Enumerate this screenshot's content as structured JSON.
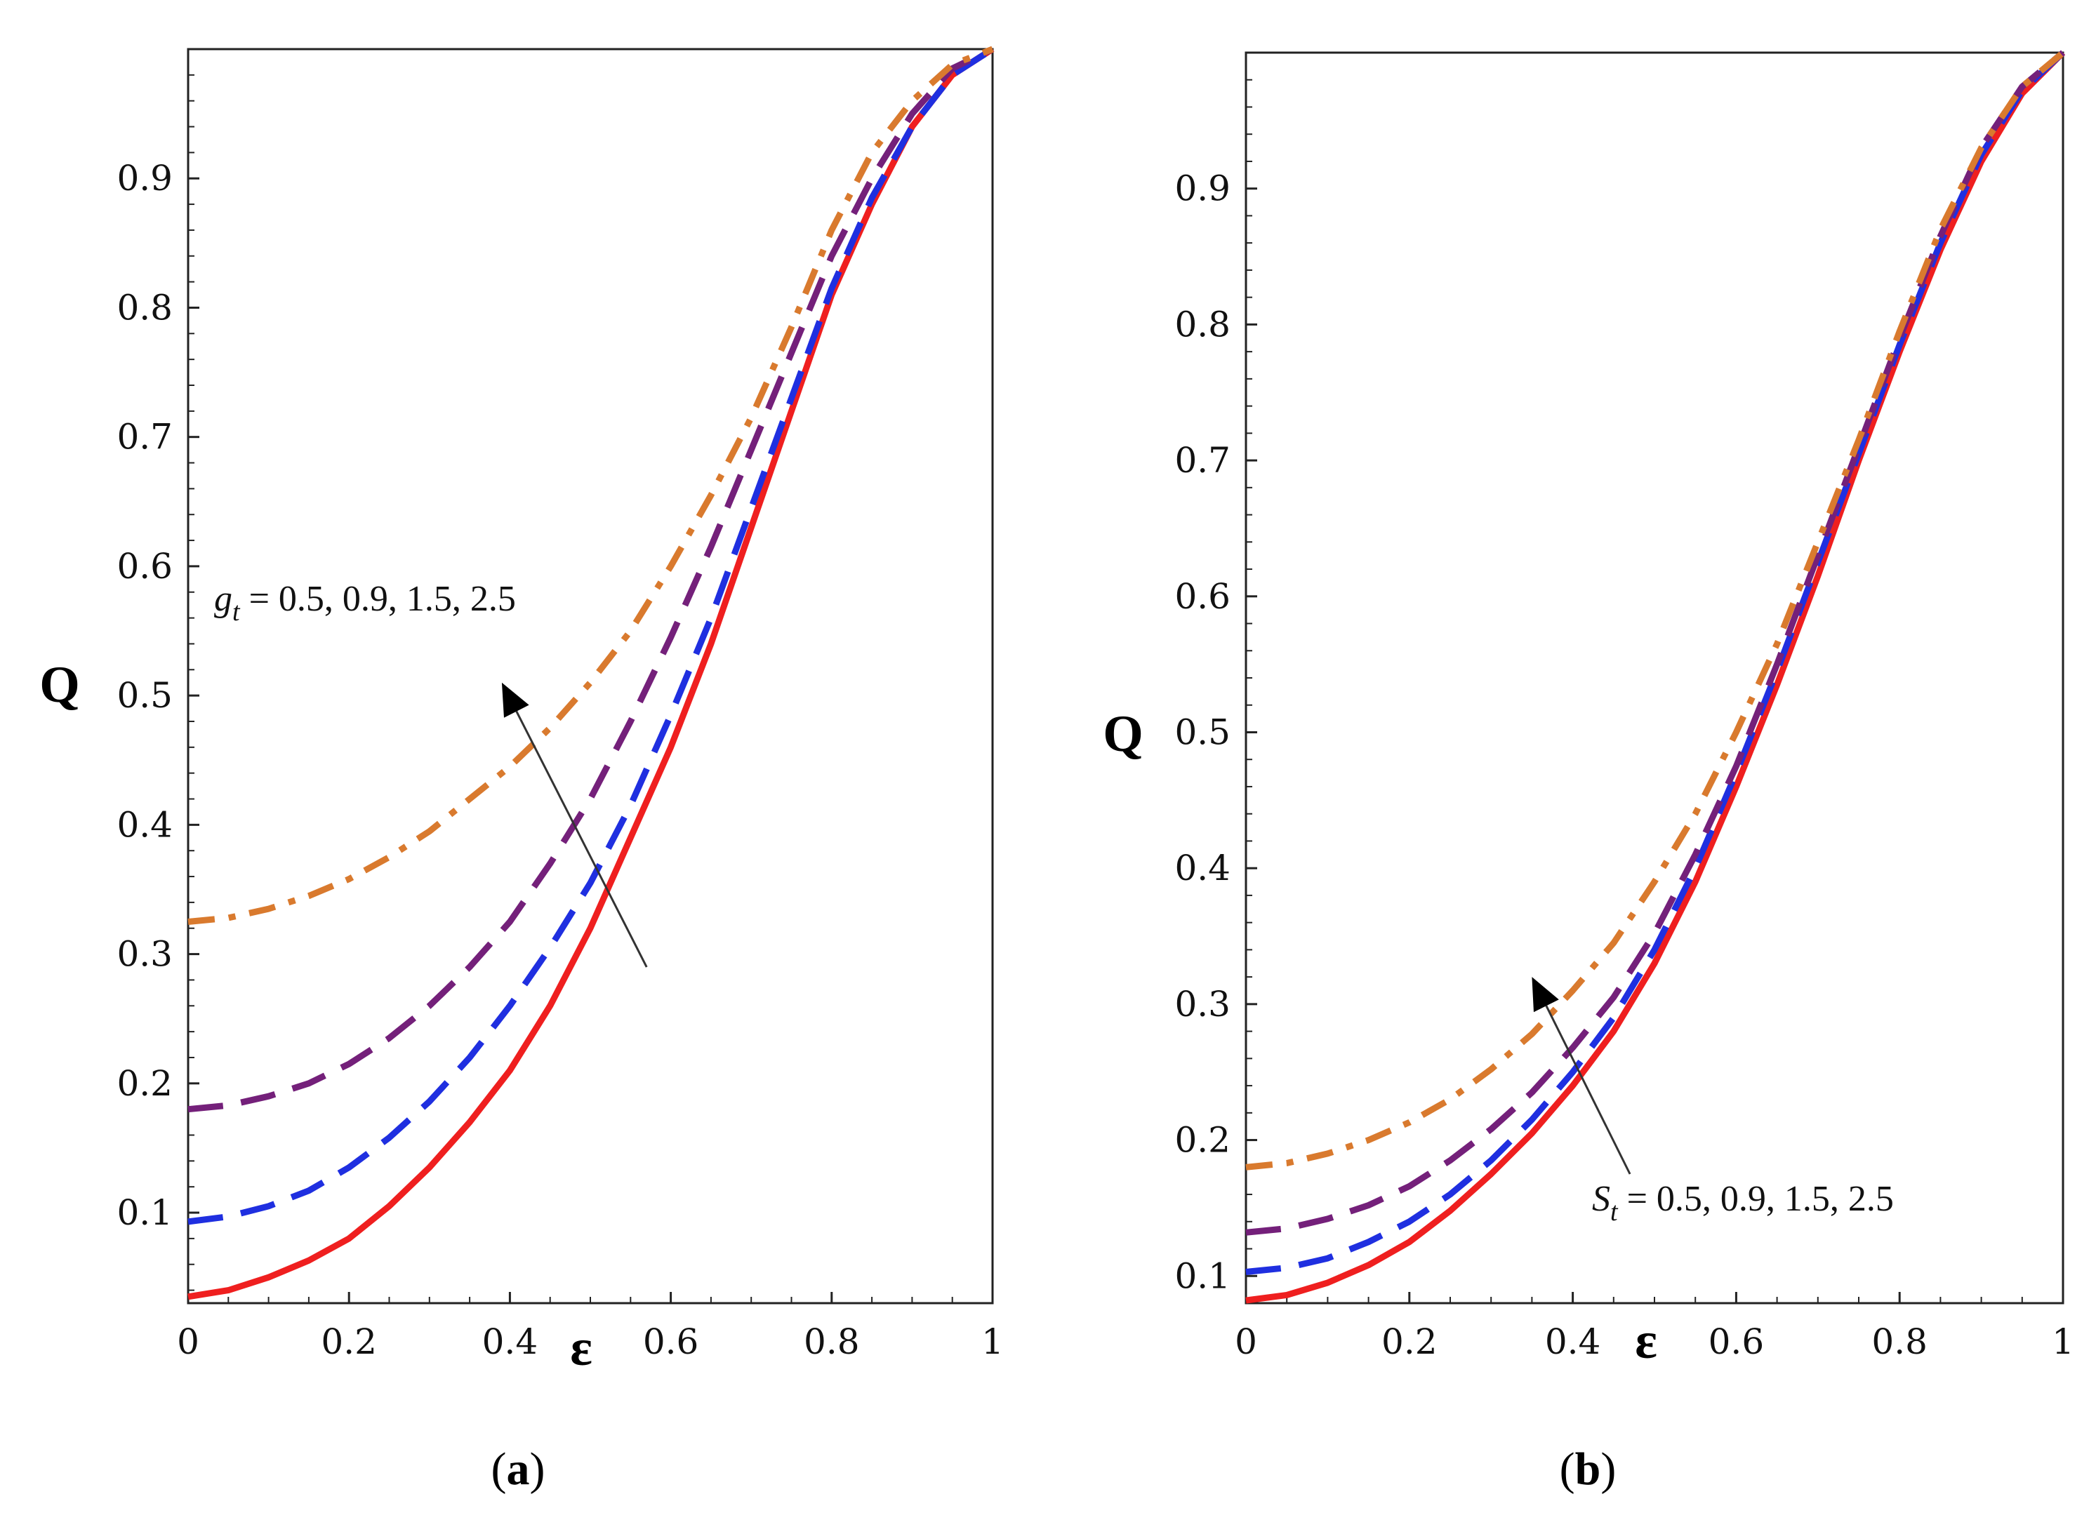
{
  "chart_data": [
    {
      "type": "line",
      "panel_label": "a",
      "caption_open": "(",
      "caption_close": ")",
      "xlabel": "ε",
      "ylabel": "Q",
      "xlim": [
        0,
        1
      ],
      "ylim": [
        0.03,
        1.0
      ],
      "xticks": [
        "0",
        "0.2",
        "0.4",
        "0.6",
        "0.8",
        "1"
      ],
      "yticks": [
        "0.1",
        "0.2",
        "0.3",
        "0.4",
        "0.5",
        "0.6",
        "0.7",
        "0.8",
        "0.9"
      ],
      "annotation": {
        "symbol": "g",
        "subscript": "t",
        "text": " = 0.5, 0.9, 1.5, 2.5",
        "arrow_from": [
          0.57,
          0.29
        ],
        "arrow_to": [
          0.39,
          0.51
        ]
      },
      "series": [
        {
          "name": "0.5",
          "color": "#ef1f1f",
          "dash": "solid",
          "x": [
            0,
            0.05,
            0.1,
            0.15,
            0.2,
            0.25,
            0.3,
            0.35,
            0.4,
            0.45,
            0.5,
            0.55,
            0.6,
            0.65,
            0.7,
            0.75,
            0.8,
            0.85,
            0.9,
            0.95,
            1.0
          ],
          "y": [
            0.035,
            0.04,
            0.05,
            0.063,
            0.08,
            0.105,
            0.135,
            0.17,
            0.21,
            0.26,
            0.32,
            0.39,
            0.46,
            0.54,
            0.63,
            0.72,
            0.81,
            0.88,
            0.94,
            0.98,
            1.0
          ]
        },
        {
          "name": "0.9",
          "color": "#1f2fe0",
          "dash": "long",
          "x": [
            0,
            0.05,
            0.1,
            0.15,
            0.2,
            0.25,
            0.3,
            0.35,
            0.4,
            0.45,
            0.5,
            0.55,
            0.6,
            0.65,
            0.7,
            0.75,
            0.8,
            0.85,
            0.9,
            0.95,
            1.0
          ],
          "y": [
            0.093,
            0.097,
            0.105,
            0.117,
            0.135,
            0.158,
            0.186,
            0.22,
            0.26,
            0.305,
            0.355,
            0.415,
            0.485,
            0.56,
            0.645,
            0.73,
            0.815,
            0.885,
            0.94,
            0.98,
            1.0
          ]
        },
        {
          "name": "1.5",
          "color": "#74207a",
          "dash": "long",
          "x": [
            0,
            0.05,
            0.1,
            0.15,
            0.2,
            0.25,
            0.3,
            0.35,
            0.4,
            0.45,
            0.5,
            0.55,
            0.6,
            0.65,
            0.7,
            0.75,
            0.8,
            0.85,
            0.9,
            0.95,
            1.0
          ],
          "y": [
            0.18,
            0.183,
            0.19,
            0.2,
            0.215,
            0.235,
            0.26,
            0.29,
            0.325,
            0.37,
            0.42,
            0.48,
            0.545,
            0.615,
            0.69,
            0.765,
            0.84,
            0.9,
            0.95,
            0.985,
            1.0
          ]
        },
        {
          "name": "2.5",
          "color": "#d97a2e",
          "dash": "dashdot",
          "x": [
            0,
            0.05,
            0.1,
            0.15,
            0.2,
            0.25,
            0.3,
            0.35,
            0.4,
            0.45,
            0.5,
            0.55,
            0.6,
            0.65,
            0.7,
            0.75,
            0.8,
            0.85,
            0.9,
            0.95,
            1.0
          ],
          "y": [
            0.325,
            0.328,
            0.335,
            0.345,
            0.358,
            0.375,
            0.395,
            0.42,
            0.445,
            0.475,
            0.51,
            0.55,
            0.6,
            0.655,
            0.715,
            0.785,
            0.86,
            0.92,
            0.96,
            0.988,
            1.0
          ]
        }
      ]
    },
    {
      "type": "line",
      "panel_label": "b",
      "caption_open": "(",
      "caption_close": ")",
      "xlabel": "ε",
      "ylabel": "Q",
      "xlim": [
        0,
        1
      ],
      "ylim": [
        0.08,
        1.0
      ],
      "xticks": [
        "0",
        "0.2",
        "0.4",
        "0.6",
        "0.8",
        "1"
      ],
      "yticks": [
        "0.1",
        "0.2",
        "0.3",
        "0.4",
        "0.5",
        "0.6",
        "0.7",
        "0.8",
        "0.9"
      ],
      "annotation": {
        "symbol": "S",
        "subscript": "t",
        "text": " = 0.5, 0.9, 1.5, 2.5",
        "arrow_from": [
          0.47,
          0.175
        ],
        "arrow_to": [
          0.35,
          0.32
        ]
      },
      "series": [
        {
          "name": "0.5",
          "color": "#ef1f1f",
          "dash": "solid",
          "x": [
            0,
            0.05,
            0.1,
            0.15,
            0.2,
            0.25,
            0.3,
            0.35,
            0.4,
            0.45,
            0.5,
            0.55,
            0.6,
            0.65,
            0.7,
            0.75,
            0.8,
            0.85,
            0.9,
            0.95,
            1.0
          ],
          "y": [
            0.082,
            0.086,
            0.095,
            0.108,
            0.125,
            0.148,
            0.175,
            0.205,
            0.24,
            0.28,
            0.33,
            0.39,
            0.46,
            0.535,
            0.615,
            0.7,
            0.78,
            0.855,
            0.92,
            0.97,
            1.0
          ]
        },
        {
          "name": "0.9",
          "color": "#1f2fe0",
          "dash": "long",
          "x": [
            0,
            0.05,
            0.1,
            0.15,
            0.2,
            0.25,
            0.3,
            0.35,
            0.4,
            0.45,
            0.5,
            0.55,
            0.6,
            0.65,
            0.7,
            0.75,
            0.8,
            0.85,
            0.9,
            0.95,
            1.0
          ],
          "y": [
            0.103,
            0.106,
            0.113,
            0.125,
            0.14,
            0.16,
            0.185,
            0.215,
            0.25,
            0.29,
            0.34,
            0.4,
            0.47,
            0.545,
            0.625,
            0.705,
            0.785,
            0.86,
            0.925,
            0.972,
            1.0
          ]
        },
        {
          "name": "1.5",
          "color": "#74207a",
          "dash": "long",
          "x": [
            0,
            0.05,
            0.1,
            0.15,
            0.2,
            0.25,
            0.3,
            0.35,
            0.4,
            0.45,
            0.5,
            0.55,
            0.6,
            0.65,
            0.7,
            0.75,
            0.8,
            0.85,
            0.9,
            0.95,
            1.0
          ],
          "y": [
            0.132,
            0.135,
            0.142,
            0.152,
            0.166,
            0.185,
            0.208,
            0.235,
            0.268,
            0.305,
            0.352,
            0.41,
            0.475,
            0.55,
            0.63,
            0.71,
            0.79,
            0.865,
            0.93,
            0.975,
            1.0
          ]
        },
        {
          "name": "2.5",
          "color": "#d97a2e",
          "dash": "dashdot",
          "x": [
            0,
            0.05,
            0.1,
            0.15,
            0.2,
            0.25,
            0.3,
            0.35,
            0.4,
            0.45,
            0.5,
            0.55,
            0.6,
            0.65,
            0.7,
            0.75,
            0.8,
            0.85,
            0.9,
            0.95,
            1.0
          ],
          "y": [
            0.18,
            0.183,
            0.19,
            0.2,
            0.213,
            0.23,
            0.252,
            0.278,
            0.31,
            0.345,
            0.39,
            0.44,
            0.5,
            0.565,
            0.64,
            0.715,
            0.795,
            0.87,
            0.93,
            0.975,
            1.0
          ]
        }
      ]
    }
  ]
}
